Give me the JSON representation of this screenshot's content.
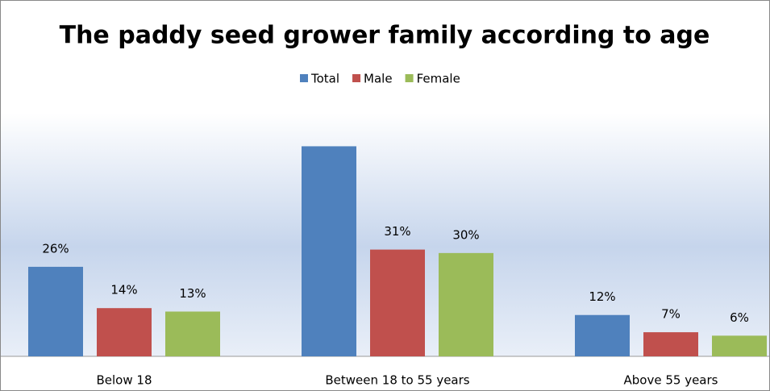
{
  "chart_data": {
    "type": "bar",
    "title": "The paddy seed grower family according to age",
    "categories": [
      "Below 18",
      "Between 18 to 55 years",
      "Above 55 years"
    ],
    "series": [
      {
        "name": "Total",
        "color": "#4f81bd",
        "values": [
          26,
          61,
          12
        ],
        "value_labels": [
          "26%",
          null,
          "12%"
        ]
      },
      {
        "name": "Male",
        "color": "#c0504d",
        "values": [
          14,
          31,
          7
        ],
        "value_labels": [
          "14%",
          "31%",
          "7%"
        ]
      },
      {
        "name": "Female",
        "color": "#9bbb59",
        "values": [
          13,
          30,
          6
        ],
        "value_labels": [
          "13%",
          "30%",
          "6%"
        ]
      }
    ],
    "ylim": [
      0,
      70
    ],
    "legend": "top"
  }
}
